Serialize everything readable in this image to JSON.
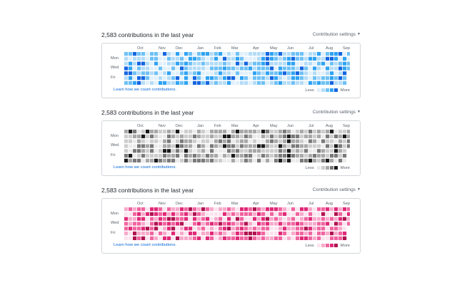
{
  "months": [
    {
      "label": "Oct",
      "col": 3
    },
    {
      "label": "Nov",
      "col": 8
    },
    {
      "label": "Dec",
      "col": 12
    },
    {
      "label": "Jan",
      "col": 17
    },
    {
      "label": "Feb",
      "col": 21
    },
    {
      "label": "Mar",
      "col": 25
    },
    {
      "label": "Apr",
      "col": 30
    },
    {
      "label": "May",
      "col": 34
    },
    {
      "label": "Jun",
      "col": 38
    },
    {
      "label": "Jul",
      "col": 43
    },
    {
      "label": "Aug",
      "col": 47
    },
    {
      "label": "Sep",
      "col": 51
    }
  ],
  "days": [
    {
      "label": "Mon",
      "row": 1
    },
    {
      "label": "Wed",
      "row": 3
    },
    {
      "label": "Fri",
      "row": 5
    }
  ],
  "sections": [
    {
      "title": "2,583 contributions in the last year",
      "settings_label": "Contribution settings",
      "learn_label": "Learn how we count contributions.",
      "legend_less": "Less",
      "legend_more": "More",
      "palette": [
        "#e1f0fb",
        "#b4dcf7",
        "#6ec1f5",
        "#2fa3f2",
        "#1565e0"
      ]
    },
    {
      "title": "2,583 contributions in the last year",
      "settings_label": "Contribution settings",
      "learn_label": "Learn how we count contributions.",
      "legend_less": "Less",
      "legend_more": "More",
      "palette": [
        "#ebebeb",
        "#cdcdcd",
        "#a8a8a8",
        "#7a7a7a",
        "#1a1a1a"
      ]
    },
    {
      "title": "2,583 contributions in the last year",
      "settings_label": "Contribution settings",
      "learn_label": "Learn how we count contributions.",
      "legend_less": "Less",
      "legend_more": "More",
      "palette": [
        "#fbe3ee",
        "#f7aacb",
        "#f0649f",
        "#e02a78",
        "#b0124f"
      ]
    }
  ]
}
